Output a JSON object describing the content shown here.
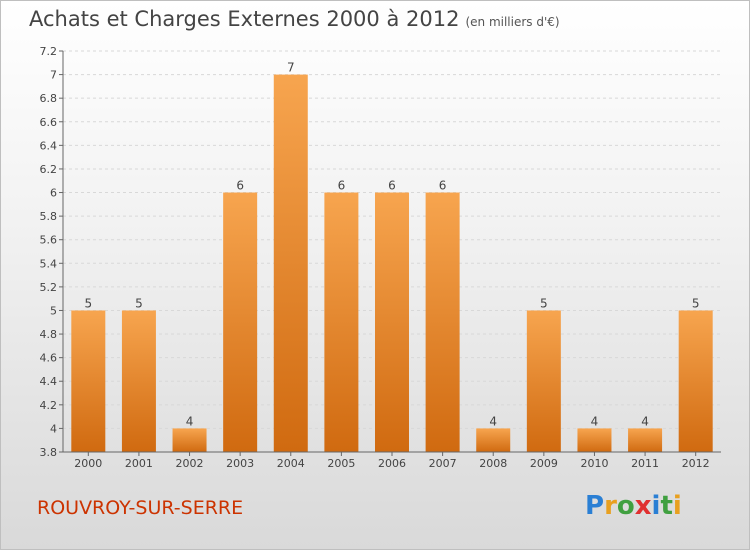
{
  "header": {
    "title": "Achats et Charges Externes 2000 à 2012",
    "unit": "(en milliers d'€)"
  },
  "footer": {
    "commune": "ROUVROY-SUR-SERRE",
    "logo": "Proxiti"
  },
  "colors": {
    "bar_top": "#f7a54f",
    "bar_bottom": "#d06a10",
    "commune": "#cc3300",
    "logo": [
      "#2a7fd4",
      "#e8a020",
      "#40a040",
      "#e03030",
      "#2a7fd4",
      "#40a040",
      "#e8a020"
    ]
  },
  "chart_data": {
    "type": "bar",
    "title": "Achats et Charges Externes 2000 à 2012",
    "subtitle": "(en milliers d'€)",
    "xlabel": "",
    "ylabel": "",
    "categories": [
      "2000",
      "2001",
      "2002",
      "2003",
      "2004",
      "2005",
      "2006",
      "2007",
      "2008",
      "2009",
      "2010",
      "2011",
      "2012"
    ],
    "values": [
      5,
      5,
      4,
      6,
      7,
      6,
      6,
      6,
      4,
      5,
      4,
      4,
      5
    ],
    "data_labels": [
      "5",
      "5",
      "4",
      "6",
      "7",
      "6",
      "6",
      "6",
      "4",
      "5",
      "4",
      "4",
      "5"
    ],
    "ylim": [
      3.8,
      7.2
    ],
    "yticks": [
      3.8,
      4,
      4.2,
      4.4,
      4.6,
      4.8,
      5,
      5.2,
      5.4,
      5.6,
      5.8,
      6,
      6.2,
      6.4,
      6.6,
      6.8,
      7,
      7.2
    ],
    "ytick_labels": [
      "3.8",
      "4",
      "4.2",
      "4.4",
      "4.6",
      "4.8",
      "5",
      "5.2",
      "5.4",
      "5.6",
      "5.8",
      "6",
      "6.2",
      "6.4",
      "6.6",
      "6.8",
      "7",
      "7.2"
    ],
    "grid": true
  }
}
